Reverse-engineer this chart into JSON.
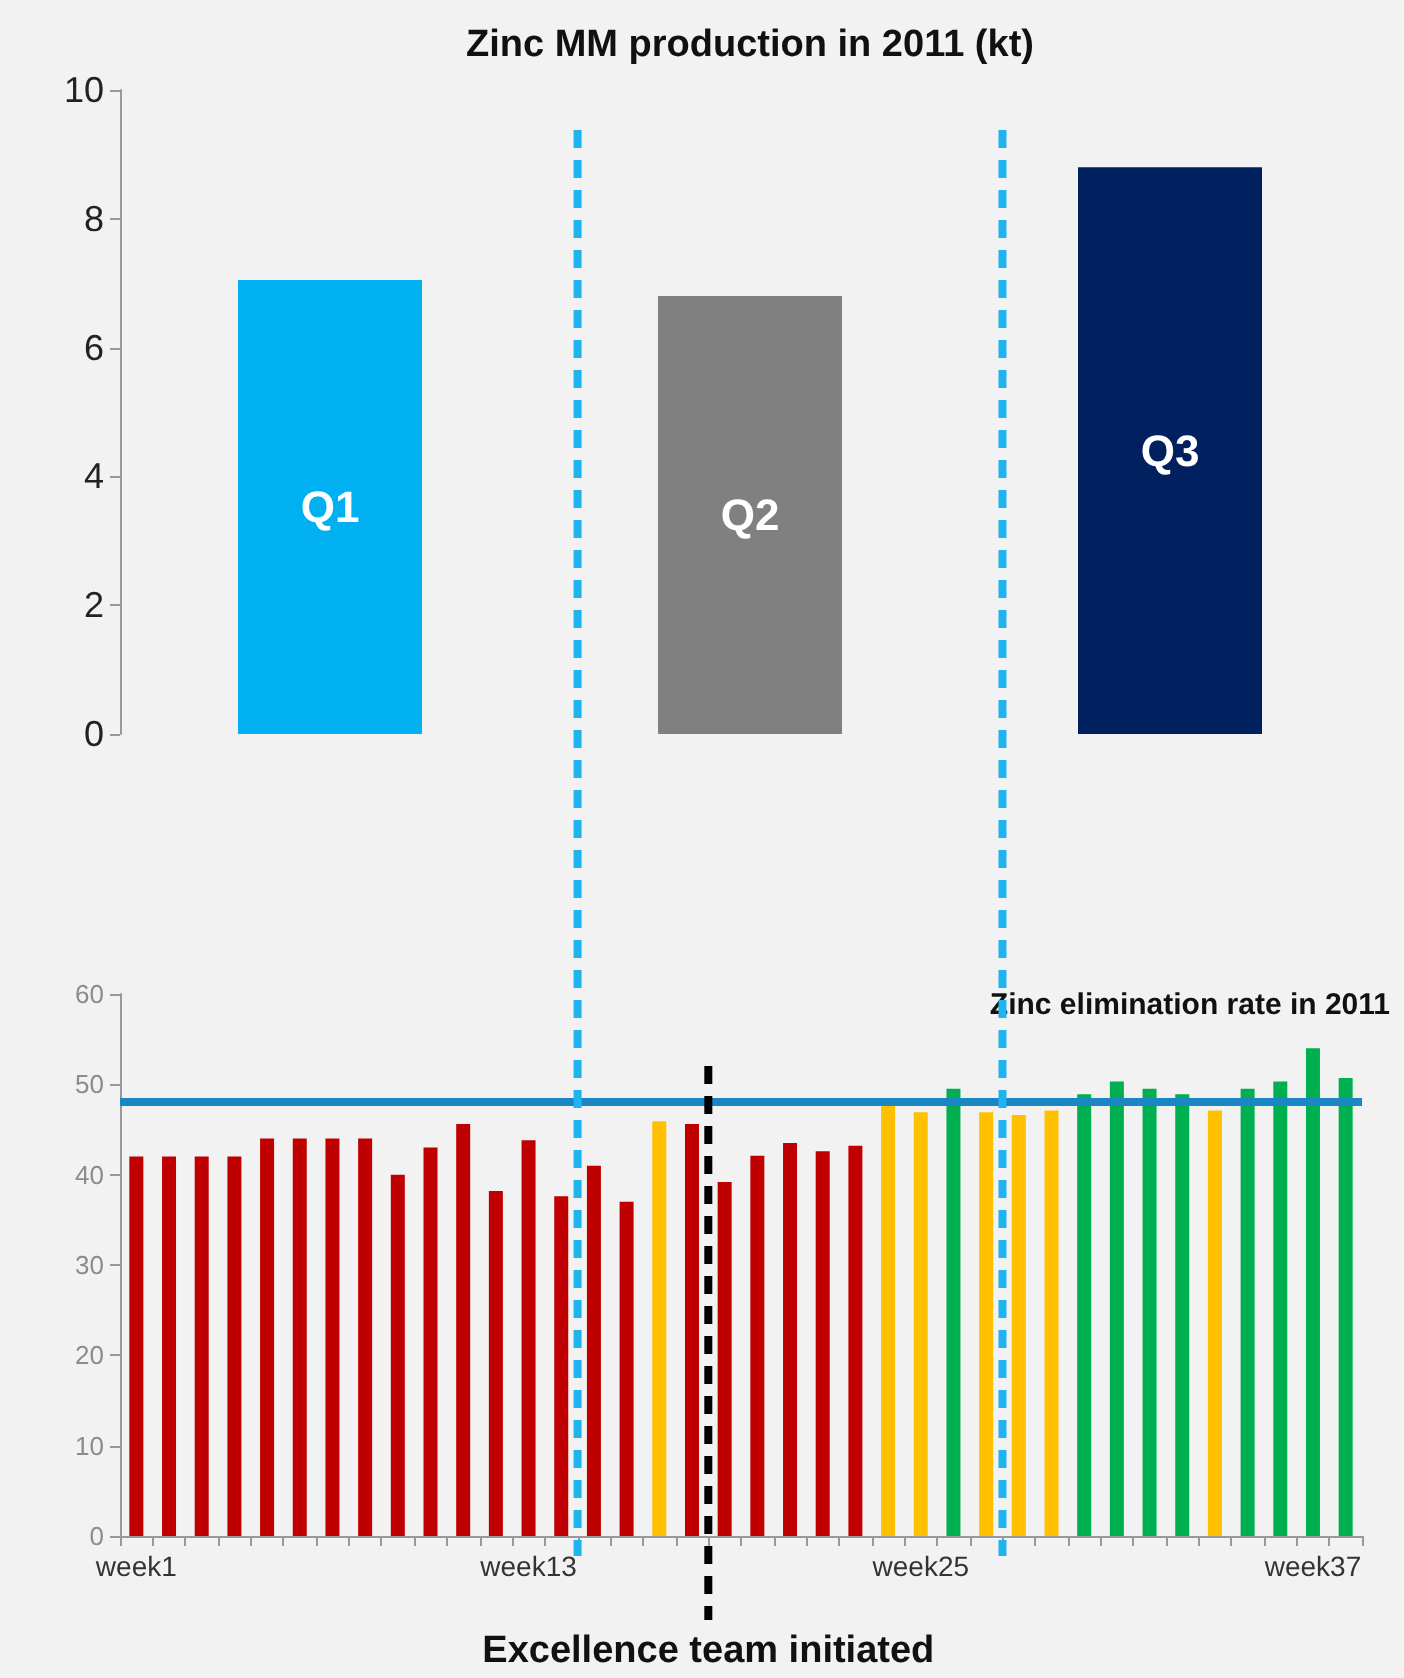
{
  "chart_data": [
    {
      "type": "bar",
      "title": "Zinc MM production in 2011 (kt)",
      "categories": [
        "Q1",
        "Q2",
        "Q3"
      ],
      "values": [
        7.05,
        6.8,
        8.8
      ],
      "colors": [
        "#00b0f0",
        "#808080",
        "#002060"
      ],
      "ylim": [
        0,
        10
      ],
      "yticks": [
        0,
        2,
        4,
        6,
        8,
        10
      ],
      "grid": false
    },
    {
      "type": "bar",
      "title": "Zinc elimination rate in 2011",
      "categories": [
        "week1",
        null,
        null,
        null,
        null,
        null,
        null,
        null,
        null,
        null,
        null,
        null,
        "week13",
        null,
        null,
        null,
        null,
        null,
        null,
        null,
        null,
        null,
        null,
        null,
        "week25",
        null,
        null,
        null,
        null,
        null,
        null,
        null,
        null,
        null,
        null,
        null,
        "week37",
        null
      ],
      "values": [
        42,
        42,
        42,
        42,
        44,
        44,
        44,
        44,
        40,
        43,
        45.6,
        38.2,
        43.8,
        37.6,
        41,
        37,
        45.9,
        45.6,
        39.2,
        42.1,
        43.5,
        42.6,
        43.2,
        47.7,
        46.9,
        49.5,
        46.9,
        46.6,
        47.1,
        48.9,
        50.3,
        49.5,
        48.9,
        47.1,
        49.5,
        50.3,
        54,
        50.7
      ],
      "colors": [
        "#c00000",
        "#c00000",
        "#c00000",
        "#c00000",
        "#c00000",
        "#c00000",
        "#c00000",
        "#c00000",
        "#c00000",
        "#c00000",
        "#c00000",
        "#c00000",
        "#c00000",
        "#c00000",
        "#c00000",
        "#c00000",
        "#ffc000",
        "#c00000",
        "#c00000",
        "#c00000",
        "#c00000",
        "#c00000",
        "#c00000",
        "#ffc000",
        "#ffc000",
        "#00b050",
        "#ffc000",
        "#ffc000",
        "#ffc000",
        "#00b050",
        "#00b050",
        "#00b050",
        "#00b050",
        "#ffc000",
        "#00b050",
        "#00b050",
        "#00b050",
        "#00b050"
      ],
      "ylim": [
        0,
        60
      ],
      "yticks": [
        0,
        10,
        20,
        30,
        40,
        50,
        60
      ],
      "grid": false,
      "ref_lines": [
        {
          "axis": "y",
          "value": 48,
          "color": "#1a86c4",
          "line_style": "solid"
        }
      ],
      "annotations": [
        "Excellence team initiated"
      ]
    }
  ]
}
